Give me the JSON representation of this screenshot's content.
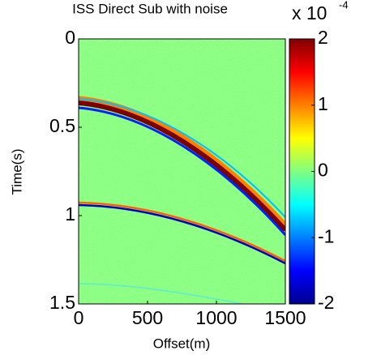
{
  "chart_data": {
    "type": "image",
    "title": "ISS Direct Sub with noise",
    "xlabel": "Offset(m)",
    "ylabel": "Time(s)",
    "xlim": [
      0,
      1500
    ],
    "xticks": [
      0,
      500,
      1000,
      1500
    ],
    "ylim": [
      0,
      1.5
    ],
    "yticks": [
      0,
      0.5,
      1,
      1.5
    ],
    "y_reversed": true,
    "colorbar": {
      "clim": [
        -2,
        2
      ],
      "ticks": [
        -2,
        -1,
        0,
        1,
        2
      ],
      "multiplier": "x 10",
      "exponent": "-4",
      "colormap": "jet"
    }
  }
}
